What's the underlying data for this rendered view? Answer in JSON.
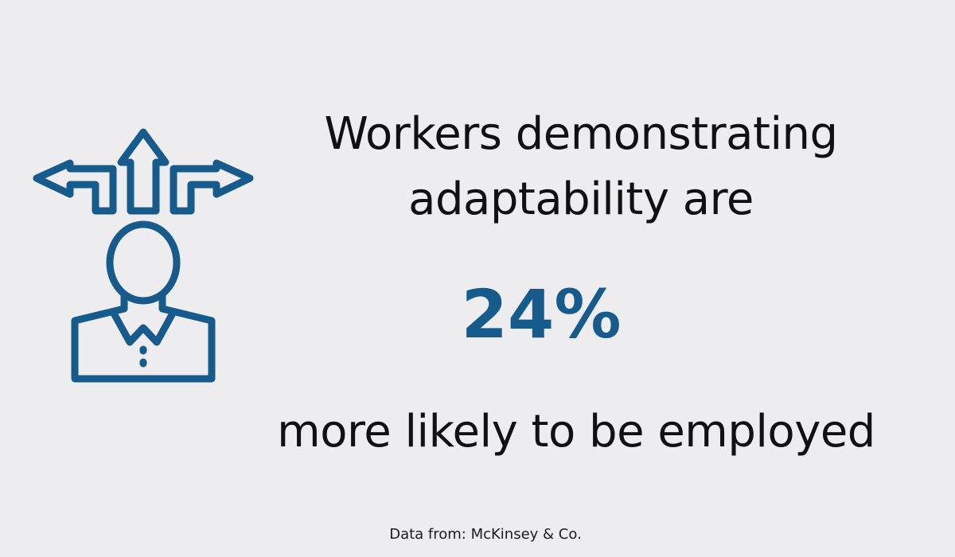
{
  "icon": "person-with-direction-arrows-icon",
  "colors": {
    "background": "#ededf0",
    "accent": "#175a8c",
    "text": "#111111"
  },
  "headline": {
    "line1": "Workers demonstrating",
    "line2": "adaptability are"
  },
  "stat": "24%",
  "subline": "more likely to be employed",
  "source": "Data from: McKinsey & Co."
}
